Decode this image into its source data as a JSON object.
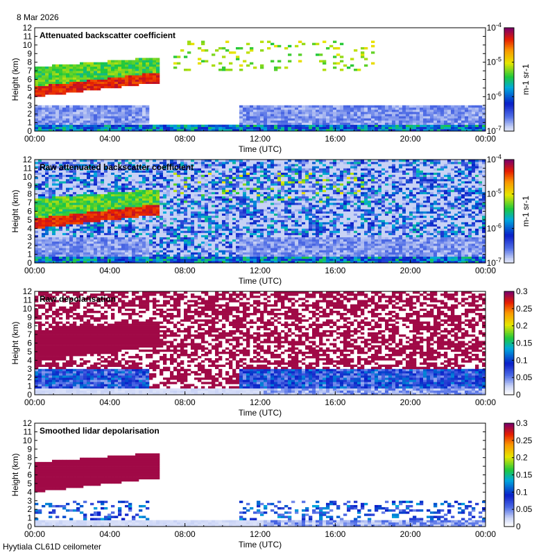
{
  "date": "8 Mar 2026",
  "footer": "Hyytiala CL61D ceilometer",
  "chart_data": [
    {
      "type": "heatmap",
      "title": "Attenuated backscatter coefficient",
      "xlabel": "Time (UTC)",
      "ylabel": "Height (km)",
      "x_ticks": [
        "00:00",
        "04:00",
        "08:00",
        "12:00",
        "16:00",
        "20:00",
        "00:00"
      ],
      "y_ticks": [
        "0",
        "1",
        "2",
        "3",
        "4",
        "5",
        "6",
        "7",
        "8",
        "9",
        "10",
        "11",
        "12"
      ],
      "ylim": [
        0,
        12
      ],
      "colorbar": {
        "scale": "log",
        "unit": "m-1 sr-1",
        "range": [
          1e-07,
          0.0001
        ],
        "tick_labels": [
          [
            "10",
            "-4"
          ],
          [
            "10",
            "-5"
          ],
          [
            "10",
            "-6"
          ],
          [
            "10",
            "-7"
          ]
        ]
      },
      "noisy": false
    },
    {
      "type": "heatmap",
      "title": "Raw attenuated backscatter coefficient",
      "xlabel": "Time (UTC)",
      "ylabel": "Height (km)",
      "x_ticks": [
        "00:00",
        "04:00",
        "08:00",
        "12:00",
        "16:00",
        "20:00",
        "00:00"
      ],
      "y_ticks": [
        "0",
        "1",
        "2",
        "3",
        "4",
        "5",
        "6",
        "7",
        "8",
        "9",
        "10",
        "11",
        "12"
      ],
      "ylim": [
        0,
        12
      ],
      "colorbar": {
        "scale": "log",
        "unit": "m-1 sr-1",
        "range": [
          1e-07,
          0.0001
        ],
        "tick_labels": [
          [
            "10",
            "-4"
          ],
          [
            "10",
            "-5"
          ],
          [
            "10",
            "-6"
          ],
          [
            "10",
            "-7"
          ]
        ]
      },
      "noisy": true
    },
    {
      "type": "heatmap",
      "title": "Raw depolarisation",
      "xlabel": "Time (UTC)",
      "ylabel": "Height (km)",
      "x_ticks": [
        "00:00",
        "04:00",
        "08:00",
        "12:00",
        "16:00",
        "20:00",
        "00:00"
      ],
      "y_ticks": [
        "0",
        "1",
        "2",
        "3",
        "4",
        "5",
        "6",
        "7",
        "8",
        "9",
        "10",
        "11",
        "12"
      ],
      "ylim": [
        0,
        12
      ],
      "colorbar": {
        "scale": "linear",
        "unit": "",
        "range": [
          0,
          0.3
        ],
        "tick_labels": [
          "0.3",
          "0.25",
          "0.2",
          "0.15",
          "0.1",
          "0.05",
          "0"
        ]
      },
      "noisy": true
    },
    {
      "type": "heatmap",
      "title": "Smoothed lidar depolarisation",
      "xlabel": "Time (UTC)",
      "ylabel": "Height (km)",
      "x_ticks": [
        "00:00",
        "04:00",
        "08:00",
        "12:00",
        "16:00",
        "20:00",
        "00:00"
      ],
      "y_ticks": [
        "0",
        "1",
        "2",
        "3",
        "4",
        "5",
        "6",
        "7",
        "8",
        "9",
        "10",
        "11",
        "12"
      ],
      "ylim": [
        0,
        12
      ],
      "colorbar": {
        "scale": "linear",
        "unit": "",
        "range": [
          0,
          0.3
        ],
        "tick_labels": [
          "0.3",
          "0.25",
          "0.2",
          "0.15",
          "0.1",
          "0.05",
          "0"
        ]
      },
      "noisy": false
    }
  ]
}
